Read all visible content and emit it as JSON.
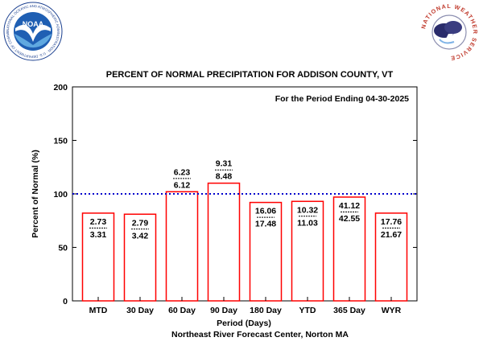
{
  "logos": {
    "noaa": {
      "text": "NOAA",
      "ring_text": "NATIONAL OCEANIC AND ATMOSPHERIC ADMINISTRATION · U.S. DEPARTMENT OF COMMERCE"
    },
    "nws": {
      "ring_text": "NATIONAL WEATHER SERVICE"
    }
  },
  "chart_data": {
    "type": "bar",
    "title": "PERCENT OF NORMAL PRECIPITATION FOR ADDISON COUNTY, VT",
    "period_note": "For the Period Ending 04-30-2025",
    "xlabel": "Period (Days)",
    "ylabel": "Percent of Normal (%)",
    "credit": "Northeast River Forecast Center, Norton MA",
    "ylim": [
      0,
      200
    ],
    "yticks": [
      0,
      50,
      100,
      150,
      200
    ],
    "reference_line": 100,
    "categories": [
      "MTD",
      "30 Day",
      "60 Day",
      "90 Day",
      "180 Day",
      "YTD",
      "365 Day",
      "WYR"
    ],
    "values": [
      82,
      81,
      102,
      110,
      92,
      93,
      97,
      82
    ],
    "observed": [
      "2.73",
      "2.79",
      "6.23",
      "9.31",
      "16.06",
      "10.32",
      "41.12",
      "17.76"
    ],
    "normal": [
      "3.31",
      "3.42",
      "6.12",
      "8.48",
      "17.48",
      "11.03",
      "42.55",
      "21.67"
    ],
    "grid": false,
    "colors": {
      "bar_edge": "#ff0000",
      "reference": "#0000cc",
      "axis": "#000000"
    }
  }
}
